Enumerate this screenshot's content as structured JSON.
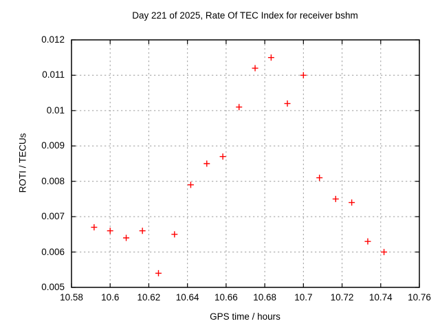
{
  "page": {
    "background_color": "#ffffff",
    "text_color": "#000000"
  },
  "chart_data": {
    "type": "scatter",
    "title": "Day 221 of 2025, Rate Of TEC Index for receiver bshm",
    "xlabel": "GPS time / hours",
    "ylabel": "ROTI / TECUs",
    "xlim": [
      10.58,
      10.76
    ],
    "ylim": [
      0.005,
      0.012
    ],
    "x_ticks": [
      10.58,
      10.6,
      10.62,
      10.64,
      10.66,
      10.68,
      10.7,
      10.72,
      10.74,
      10.76
    ],
    "x_tick_labels": [
      "10.58",
      "10.6",
      "10.62",
      "10.64",
      "10.66",
      "10.68",
      "10.7",
      "10.72",
      "10.74",
      "10.76"
    ],
    "y_ticks": [
      0.005,
      0.006,
      0.007,
      0.008,
      0.009,
      0.01,
      0.011,
      0.012
    ],
    "y_tick_labels": [
      "0.005",
      "0.006",
      "0.007",
      "0.008",
      "0.009",
      "0.01",
      "0.011",
      "0.012"
    ],
    "grid": true,
    "legend": "none",
    "marker": {
      "shape": "plus",
      "color": "#ff0000",
      "size": 9
    },
    "series": [
      {
        "name": "ROTI",
        "points": [
          [
            10.5917,
            0.0067
          ],
          [
            10.6,
            0.0066
          ],
          [
            10.6083,
            0.0064
          ],
          [
            10.6167,
            0.0066
          ],
          [
            10.625,
            0.0054
          ],
          [
            10.6333,
            0.0065
          ],
          [
            10.6417,
            0.0079
          ],
          [
            10.65,
            0.0085
          ],
          [
            10.6583,
            0.0087
          ],
          [
            10.6667,
            0.0101
          ],
          [
            10.675,
            0.0112
          ],
          [
            10.6833,
            0.0115
          ],
          [
            10.6917,
            0.0102
          ],
          [
            10.7,
            0.011
          ],
          [
            10.7083,
            0.0081
          ],
          [
            10.7167,
            0.0075
          ],
          [
            10.725,
            0.0074
          ],
          [
            10.7333,
            0.0063
          ],
          [
            10.7417,
            0.006
          ]
        ]
      }
    ]
  }
}
